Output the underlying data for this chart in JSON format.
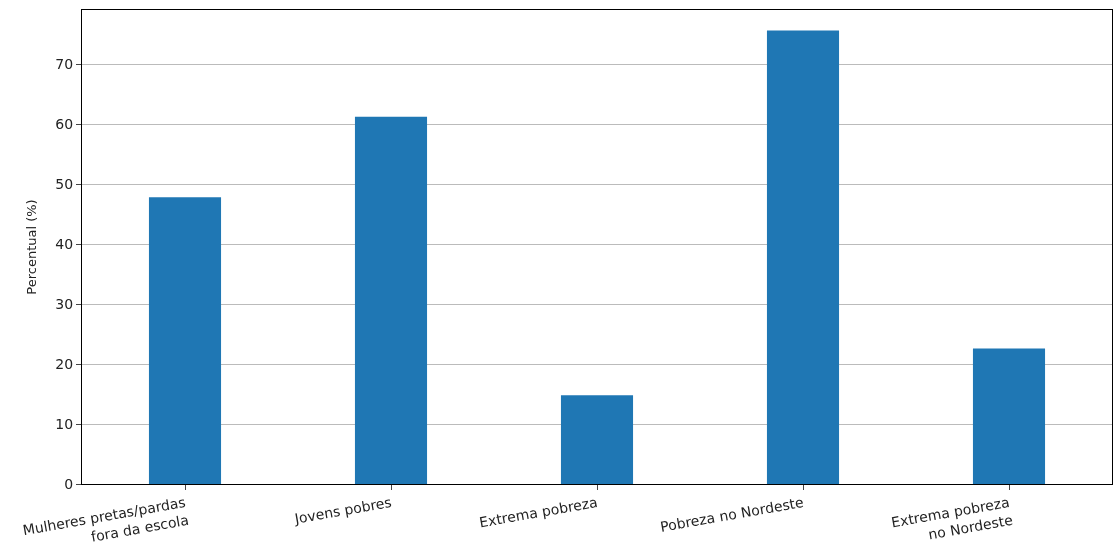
{
  "chart_data": {
    "type": "bar",
    "ylabel": "Percentual (%)",
    "categories": [
      "Mulheres pretas/pardas\nfora da escola",
      "Jovens pobres",
      "Extrema pobreza",
      "Pobreza no Nordeste",
      "Extrema pobreza\nno Nordeste"
    ],
    "values": [
      47.8,
      61.2,
      14.8,
      75.6,
      22.6
    ],
    "color": "#1f77b4",
    "ylim": [
      0,
      79
    ],
    "yticks": [
      0,
      10,
      20,
      30,
      40,
      50,
      60,
      70
    ],
    "grid": "y"
  }
}
